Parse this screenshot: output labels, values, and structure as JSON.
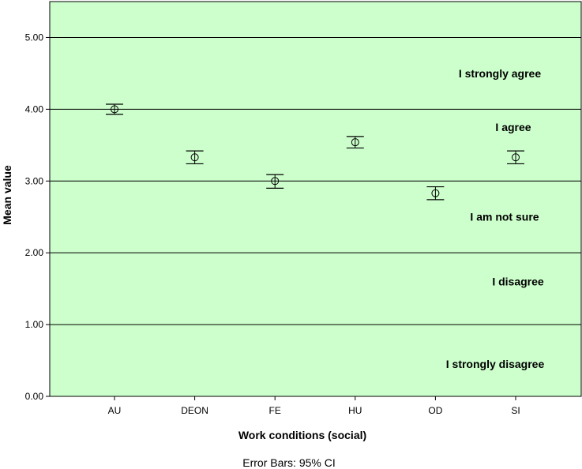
{
  "chart_data": {
    "type": "scatter",
    "xlabel": "Work conditions (social)",
    "ylabel": "Mean value",
    "footnote": "Error Bars: 95% CI",
    "ylim": [
      0,
      5.5
    ],
    "yticks": [
      "0.00",
      "1.00",
      "2.00",
      "3.00",
      "4.00",
      "5.00"
    ],
    "grid": "horizontal",
    "background_color": "#ccffcc",
    "categories": [
      "AU",
      "DEON",
      "FE",
      "HU",
      "OD",
      "SI"
    ],
    "series": [
      {
        "values": [
          4.0,
          3.33,
          3.0,
          3.54,
          2.83,
          3.33
        ],
        "ci_low": [
          3.93,
          3.24,
          2.9,
          3.46,
          2.74,
          3.24
        ],
        "ci_high": [
          4.07,
          3.42,
          3.09,
          3.62,
          2.92,
          3.42
        ]
      }
    ],
    "annotations": [
      {
        "text": "I strongly agree",
        "y": 4.5
      },
      {
        "text": "I agree",
        "y": 3.75
      },
      {
        "text": "I am not sure",
        "y": 2.5
      },
      {
        "text": "I disagree",
        "y": 1.6
      },
      {
        "text": "I strongly disagree",
        "y": 0.45
      }
    ]
  }
}
